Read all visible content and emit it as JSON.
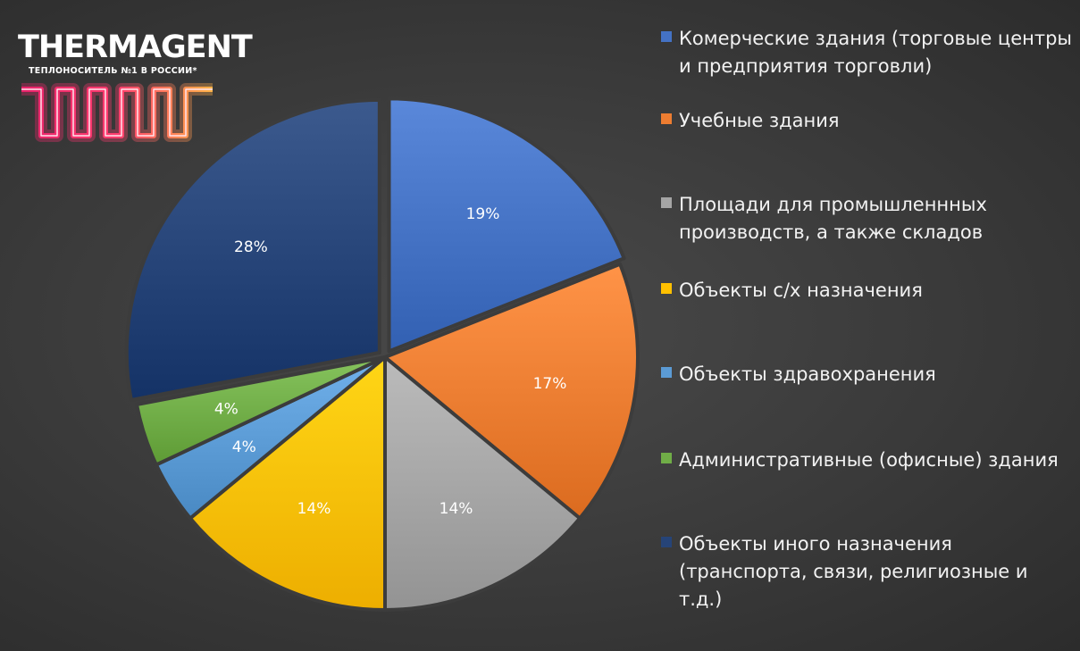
{
  "logo": {
    "name": "THERMAGENT",
    "tagline": "ТЕПЛОНОСИТЕЛЬ №1 В РОССИИ*"
  },
  "chart_data": {
    "type": "pie",
    "title": "",
    "legend_position": "right",
    "slices": [
      {
        "label": "Комерческие здания (торговые центры и предприятия торговли)",
        "value": 19,
        "value_label": "19%",
        "color": "#4472C4",
        "exploded": true
      },
      {
        "label": "Учебные здания",
        "value": 17,
        "value_label": "17%",
        "color": "#ED7D31",
        "exploded": false
      },
      {
        "label": "Площади для промышленнных производств, а также складов",
        "value": 14,
        "value_label": "14%",
        "color": "#A5A5A5",
        "exploded": false
      },
      {
        "label": "Объекты с/х назначения",
        "value": 14,
        "value_label": "14%",
        "color": "#FFC000",
        "exploded": false
      },
      {
        "label": "Объекты здравохранения",
        "value": 4,
        "value_label": "4%",
        "color": "#5B9BD5",
        "exploded": false
      },
      {
        "label": "Административные (офисные) здания",
        "value": 4,
        "value_label": "4%",
        "color": "#70AD47",
        "exploded": false
      },
      {
        "label": "Объекты иного назначения (транспорта, связи, религиозные и т.д.)",
        "value": 28,
        "value_label": "28%",
        "color": "#264478",
        "exploded": true
      }
    ]
  }
}
